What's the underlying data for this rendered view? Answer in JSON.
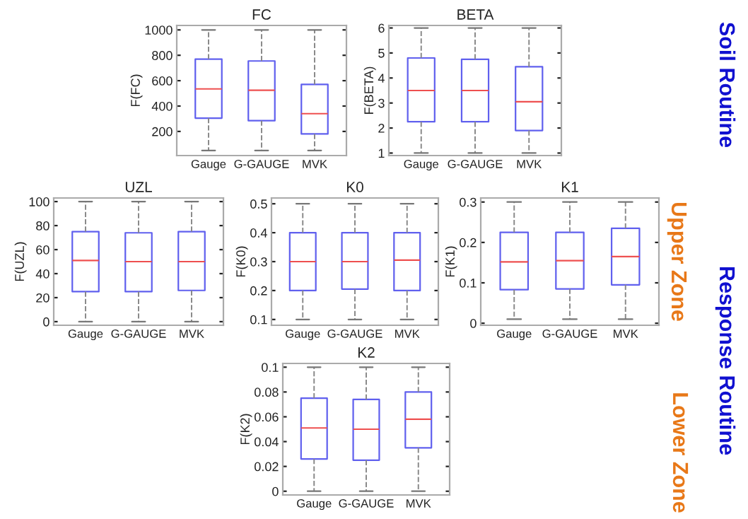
{
  "chart_data": [
    {
      "type": "box",
      "title": "FC",
      "ylabel": "F(FC)",
      "categories": [
        "Gauge",
        "G-GAUGE",
        "MVK"
      ],
      "ylim": [
        10,
        1035
      ],
      "yticks": [
        200,
        400,
        600,
        800,
        1000
      ],
      "boxes": [
        {
          "low": 50,
          "q1": 305,
          "median": 535,
          "q3": 770,
          "high": 1000
        },
        {
          "low": 50,
          "q1": 285,
          "median": 525,
          "q3": 755,
          "high": 1000
        },
        {
          "low": 50,
          "q1": 180,
          "median": 340,
          "q3": 570,
          "high": 1000
        }
      ]
    },
    {
      "type": "box",
      "title": "BETA",
      "ylabel": "F(BETA)",
      "categories": [
        "Gauge",
        "G-GAUGE",
        "MVK"
      ],
      "ylim": [
        0.9,
        6.1
      ],
      "yticks": [
        1,
        2,
        3,
        4,
        5,
        6
      ],
      "annotations": [
        "Soil Routine"
      ],
      "boxes": [
        {
          "low": 1,
          "q1": 2.25,
          "median": 3.5,
          "q3": 4.8,
          "high": 6
        },
        {
          "low": 1,
          "q1": 2.25,
          "median": 3.5,
          "q3": 4.75,
          "high": 6
        },
        {
          "low": 1,
          "q1": 1.9,
          "median": 3.05,
          "q3": 4.45,
          "high": 6
        }
      ]
    },
    {
      "type": "box",
      "title": "UZL",
      "ylabel": "F(UZL)",
      "categories": [
        "Gauge",
        "G-GAUGE",
        "MVK"
      ],
      "ylim": [
        -3,
        103
      ],
      "yticks": [
        0,
        20,
        40,
        60,
        80,
        100
      ],
      "boxes": [
        {
          "low": 0,
          "q1": 25,
          "median": 51,
          "q3": 75,
          "high": 100
        },
        {
          "low": 0,
          "q1": 25,
          "median": 50,
          "q3": 74,
          "high": 100
        },
        {
          "low": 0,
          "q1": 26,
          "median": 50,
          "q3": 75,
          "high": 100
        }
      ]
    },
    {
      "type": "box",
      "title": "K0",
      "ylabel": "F(K0)",
      "categories": [
        "Gauge",
        "G-GAUGE",
        "MVK"
      ],
      "ylim": [
        0.08,
        0.52
      ],
      "yticks": [
        0.1,
        0.2,
        0.3,
        0.4,
        0.5
      ],
      "boxes": [
        {
          "low": 0.1,
          "q1": 0.2,
          "median": 0.3,
          "q3": 0.4,
          "high": 0.5
        },
        {
          "low": 0.1,
          "q1": 0.205,
          "median": 0.3,
          "q3": 0.4,
          "high": 0.5
        },
        {
          "low": 0.1,
          "q1": 0.2,
          "median": 0.305,
          "q3": 0.4,
          "high": 0.5
        }
      ]
    },
    {
      "type": "box",
      "title": "K1",
      "ylabel": "F(K1)",
      "categories": [
        "Gauge",
        "G-GAUGE",
        "MVK"
      ],
      "ylim": [
        -0.005,
        0.31
      ],
      "yticks": [
        0,
        0.1,
        0.2,
        0.3
      ],
      "annotations": [
        "Upper Zone",
        "Response Routine"
      ],
      "boxes": [
        {
          "low": 0.01,
          "q1": 0.083,
          "median": 0.152,
          "q3": 0.225,
          "high": 0.3
        },
        {
          "low": 0.01,
          "q1": 0.085,
          "median": 0.155,
          "q3": 0.225,
          "high": 0.3
        },
        {
          "low": 0.01,
          "q1": 0.095,
          "median": 0.165,
          "q3": 0.235,
          "high": 0.3
        }
      ]
    },
    {
      "type": "box",
      "title": "K2",
      "ylabel": "F(K2)",
      "categories": [
        "Gauge",
        "G-GAUGE",
        "MVK"
      ],
      "ylim": [
        -0.003,
        0.103
      ],
      "yticks": [
        0,
        0.02,
        0.04,
        0.06,
        0.08,
        0.1
      ],
      "annotations": [
        "Lower Zone"
      ],
      "boxes": [
        {
          "low": 0,
          "q1": 0.026,
          "median": 0.051,
          "q3": 0.075,
          "high": 0.1
        },
        {
          "low": 0,
          "q1": 0.025,
          "median": 0.05,
          "q3": 0.074,
          "high": 0.1
        },
        {
          "low": 0,
          "q1": 0.035,
          "median": 0.058,
          "q3": 0.08,
          "high": 0.1
        }
      ]
    }
  ]
}
